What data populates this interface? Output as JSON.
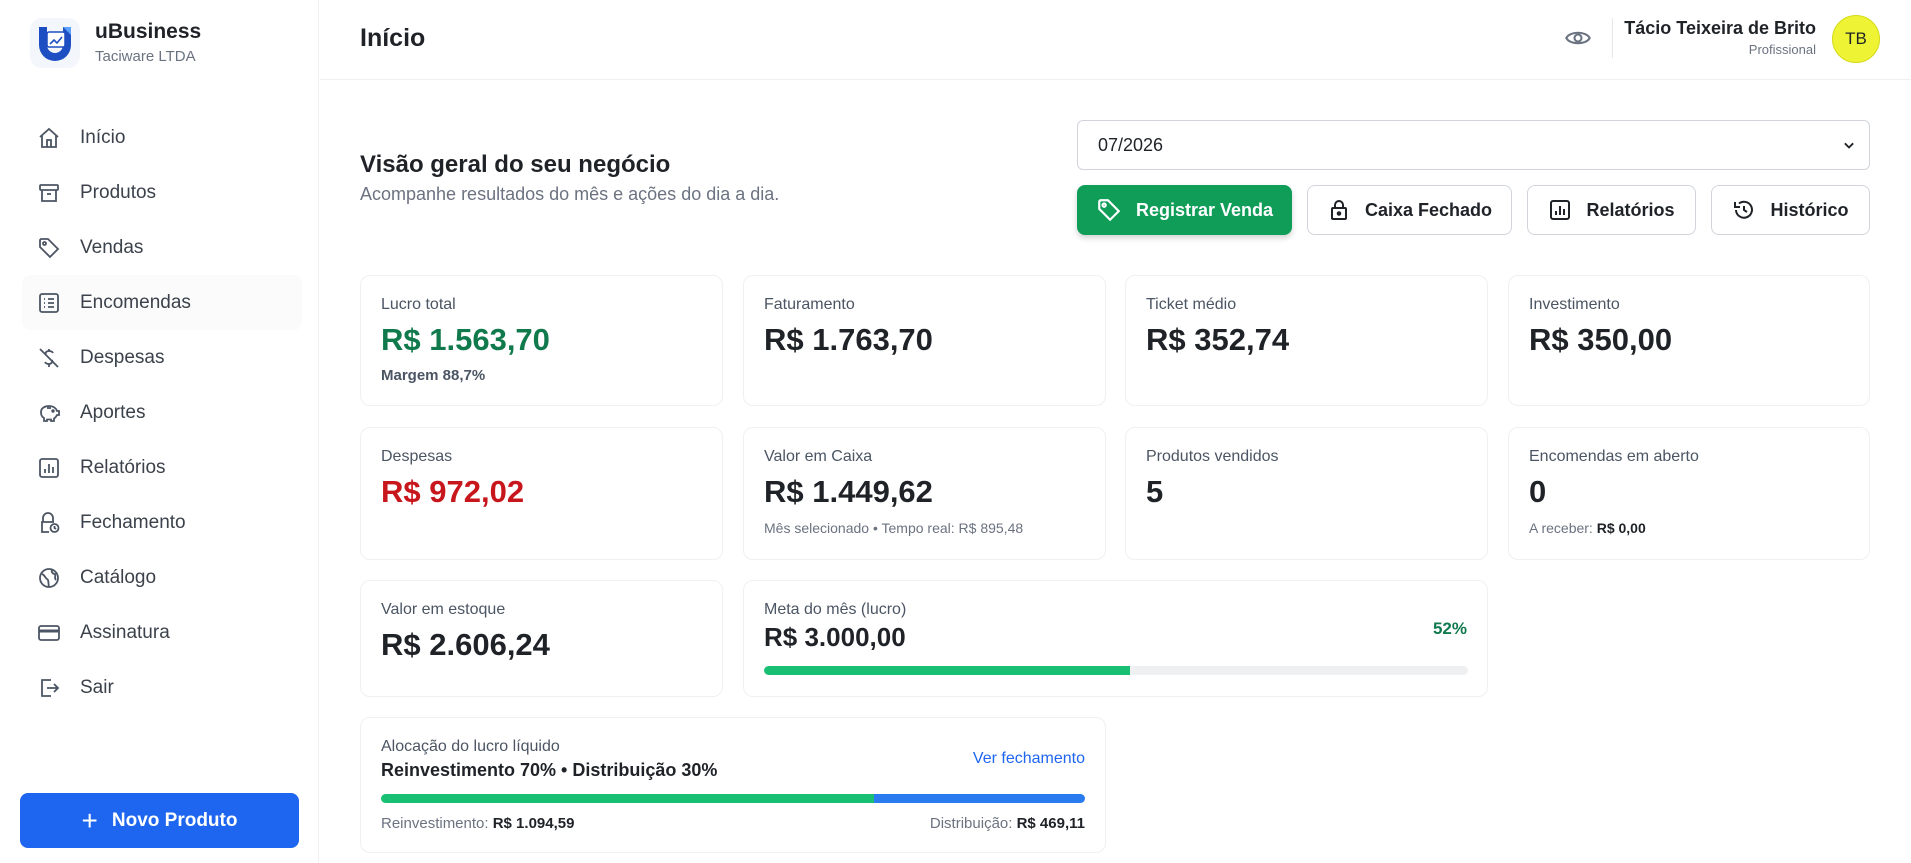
{
  "brand": {
    "name": "uBusiness",
    "company": "Taciware LTDA"
  },
  "sidebar": {
    "items": [
      {
        "label": "Início",
        "icon": "home-icon"
      },
      {
        "label": "Produtos",
        "icon": "archive-icon"
      },
      {
        "label": "Vendas",
        "icon": "tag-icon"
      },
      {
        "label": "Encomendas",
        "icon": "list-icon"
      },
      {
        "label": "Despesas",
        "icon": "dollar-off-icon"
      },
      {
        "label": "Aportes",
        "icon": "piggy-bank-icon"
      },
      {
        "label": "Relatórios",
        "icon": "report-icon"
      },
      {
        "label": "Fechamento",
        "icon": "lock-clock-icon"
      },
      {
        "label": "Catálogo",
        "icon": "globe-icon"
      },
      {
        "label": "Assinatura",
        "icon": "card-icon"
      },
      {
        "label": "Sair",
        "icon": "logout-icon"
      }
    ],
    "new_product": "Novo Produto"
  },
  "header": {
    "title": "Início",
    "user_name": "Tácio Teixeira de Brito",
    "user_role": "Profissional",
    "avatar_initials": "TB"
  },
  "overview": {
    "title": "Visão geral do seu negócio",
    "subtitle": "Acompanhe resultados do mês e ações do dia a dia.",
    "month": "07/2026",
    "actions": {
      "register_sale": "Registrar Venda",
      "cash_closed": "Caixa Fechado",
      "reports": "Relatórios",
      "history": "Histórico"
    }
  },
  "cards": {
    "lucro": {
      "label": "Lucro total",
      "value": "R$ 1.563,70",
      "foot": "Margem 88,7%"
    },
    "faturamento": {
      "label": "Faturamento",
      "value": "R$ 1.763,70"
    },
    "ticket": {
      "label": "Ticket médio",
      "value": "R$ 352,74"
    },
    "investimento": {
      "label": "Investimento",
      "value": "R$ 350,00"
    },
    "despesas": {
      "label": "Despesas",
      "value": "R$ 972,02"
    },
    "caixa": {
      "label": "Valor em Caixa",
      "value": "R$ 1.449,62",
      "foot_a": "Mês selecionado",
      "foot_sep": " • ",
      "foot_b": "Tempo real: R$ 895,48"
    },
    "produtos": {
      "label": "Produtos vendidos",
      "value": "5"
    },
    "encomendas": {
      "label": "Encomendas em aberto",
      "value": "0",
      "foot_label": "A receber: ",
      "foot_value": "R$ 0,00"
    },
    "estoque": {
      "label": "Valor em estoque",
      "value": "R$ 2.606,24"
    },
    "meta": {
      "label": "Meta do mês (lucro)",
      "value": "R$ 3.000,00",
      "percent": "52%",
      "progress": 0.52
    },
    "alocacao": {
      "label": "Alocação do lucro líquido",
      "summary": "Reinvestimento 70% • Distribuição 30%",
      "link": "Ver fechamento",
      "reinvest_share": 0.7,
      "distrib_share": 0.3,
      "reinvest_label": "Reinvestimento: ",
      "reinvest_value": "R$ 1.094,59",
      "distrib_label": "Distribuição: ",
      "distrib_value": "R$ 469,11"
    }
  },
  "colors": {
    "primary": "#1e66f0",
    "success": "#0f9d58",
    "profit": "#107a4d",
    "danger": "#c8161d",
    "progress": "#19bf72",
    "distribution": "#2a7bef"
  }
}
